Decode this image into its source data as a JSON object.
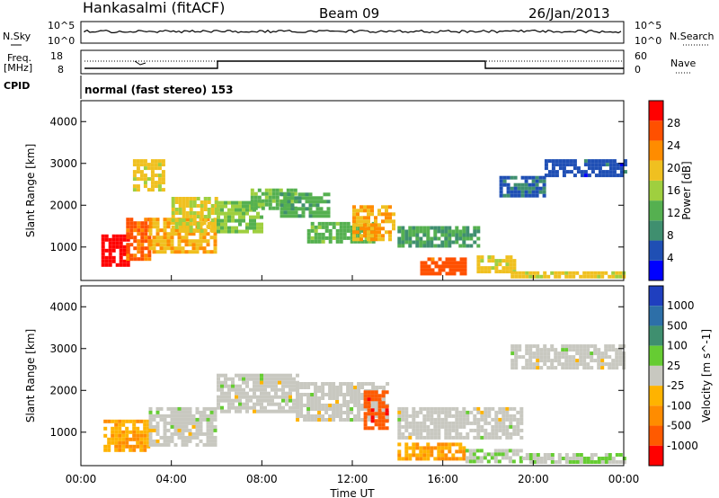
{
  "header": {
    "station": "Hankasalmi (fitACF)",
    "beam": "Beam 09",
    "date": "26/Jan/2013"
  },
  "noise_panel": {
    "left_label": "N.Sky",
    "right_label": "N.Search",
    "left_ticks": [
      "10^5",
      "10^0"
    ],
    "right_ticks": [
      "10^5",
      "10^0"
    ]
  },
  "freq_panel": {
    "left_label_1": "Freq.",
    "left_label_2": "[MHz]",
    "left_ticks": [
      "18",
      "8"
    ],
    "right_label": "Nave",
    "right_ticks": [
      "60",
      "0"
    ],
    "cpid_label": "CPID",
    "cpid_text": "normal (fast stereo) 153"
  },
  "colors": {
    "power_scale": [
      "#0000ff",
      "#1f4fb4",
      "#3f8f6f",
      "#55b050",
      "#9fcf3f",
      "#f0c020",
      "#ff8c00",
      "#ff5000",
      "#ff0000"
    ],
    "velocity_scale": [
      "#1f3fbf",
      "#2d6fa8",
      "#3f8f6f",
      "#66cc33",
      "#c8c8c0",
      "#ffb300",
      "#ff8c00",
      "#ff5a00",
      "#ff0000"
    ]
  },
  "chart_data": [
    {
      "type": "heatmap",
      "title": "Power",
      "xlabel": "Time UT",
      "ylabel": "Slant Range [km]",
      "xlim_hours": [
        0,
        24
      ],
      "ylim": [
        200,
        4500
      ],
      "y_ticks": [
        "1000",
        "2000",
        "3000",
        "4000"
      ],
      "x_ticks": [
        "00:00",
        "04:00",
        "08:00",
        "12:00",
        "16:00",
        "20:00",
        "00:00"
      ],
      "colorbar": {
        "label": "Power [dB]",
        "ticks": [
          "28",
          "24",
          "20",
          "16",
          "12",
          "8",
          "4"
        ],
        "range": [
          0,
          30
        ]
      },
      "regions": [
        {
          "t0": 0.9,
          "t1": 2.1,
          "r0": 600,
          "r1": 1300,
          "v": 29
        },
        {
          "t0": 2.0,
          "t1": 3.0,
          "r0": 700,
          "r1": 1700,
          "v": 24
        },
        {
          "t0": 3.0,
          "t1": 6.0,
          "r0": 900,
          "r1": 1700,
          "v": 20
        },
        {
          "t0": 4.0,
          "t1": 6.0,
          "r0": 1400,
          "r1": 2200,
          "v": 17
        },
        {
          "t0": 2.3,
          "t1": 3.6,
          "r0": 2400,
          "r1": 3100,
          "v": 18
        },
        {
          "t0": 6.0,
          "t1": 8.0,
          "r0": 1400,
          "r1": 2100,
          "v": 14
        },
        {
          "t0": 7.5,
          "t1": 9.5,
          "r0": 1900,
          "r1": 2400,
          "v": 13
        },
        {
          "t0": 8.8,
          "t1": 11.0,
          "r0": 1700,
          "r1": 2300,
          "v": 11
        },
        {
          "t0": 10.0,
          "t1": 13.0,
          "r0": 1100,
          "r1": 1600,
          "v": 12
        },
        {
          "t0": 12.0,
          "t1": 13.8,
          "r0": 1200,
          "r1": 2000,
          "v": 20
        },
        {
          "t0": 14.0,
          "t1": 17.5,
          "r0": 1000,
          "r1": 1500,
          "v": 10
        },
        {
          "t0": 15.0,
          "t1": 17.0,
          "r0": 400,
          "r1": 750,
          "v": 25
        },
        {
          "t0": 17.5,
          "t1": 19.2,
          "r0": 450,
          "r1": 800,
          "v": 18
        },
        {
          "t0": 18.5,
          "t1": 20.5,
          "r0": 2200,
          "r1": 2700,
          "v": 6
        },
        {
          "t0": 20.5,
          "t1": 24.0,
          "r0": 2700,
          "r1": 3100,
          "v": 5
        },
        {
          "t0": 19.0,
          "t1": 24.0,
          "r0": 280,
          "r1": 420,
          "v": 18
        }
      ]
    },
    {
      "type": "heatmap",
      "title": "Velocity",
      "xlabel": "Time UT",
      "ylabel": "Slant Range [km]",
      "xlim_hours": [
        0,
        24
      ],
      "ylim": [
        200,
        4500
      ],
      "y_ticks": [
        "1000",
        "2000",
        "3000",
        "4000"
      ],
      "x_ticks": [
        "00:00",
        "04:00",
        "08:00",
        "12:00",
        "16:00",
        "20:00",
        "00:00"
      ],
      "colorbar": {
        "label": "Velocity [m s^-1]",
        "ticks": [
          "1000",
          "500",
          "100",
          "25",
          "-25",
          "-100",
          "-500",
          "-1000"
        ],
        "range": [
          -1000,
          1000
        ]
      },
      "regions": [
        {
          "t0": 1.0,
          "t1": 3.0,
          "r0": 600,
          "r1": 1300,
          "v": -300
        },
        {
          "t0": 3.0,
          "t1": 6.0,
          "r0": 700,
          "r1": 1600,
          "v": 0
        },
        {
          "t0": 6.0,
          "t1": 9.5,
          "r0": 1500,
          "r1": 2400,
          "v": 0
        },
        {
          "t0": 9.5,
          "t1": 13.5,
          "r0": 1300,
          "r1": 2200,
          "v": 0
        },
        {
          "t0": 12.5,
          "t1": 13.5,
          "r0": 1100,
          "r1": 2000,
          "v": -700
        },
        {
          "t0": 14.0,
          "t1": 17.0,
          "r0": 350,
          "r1": 750,
          "v": -300
        },
        {
          "t0": 17.0,
          "t1": 19.5,
          "r0": 300,
          "r1": 600,
          "v": 80
        },
        {
          "t0": 19.5,
          "t1": 24.0,
          "r0": 250,
          "r1": 500,
          "v": 80
        },
        {
          "t0": 14.0,
          "t1": 19.5,
          "r0": 900,
          "r1": 1600,
          "v": 0
        },
        {
          "t0": 19.0,
          "t1": 24.0,
          "r0": 2500,
          "r1": 3100,
          "v": 0
        }
      ]
    }
  ]
}
